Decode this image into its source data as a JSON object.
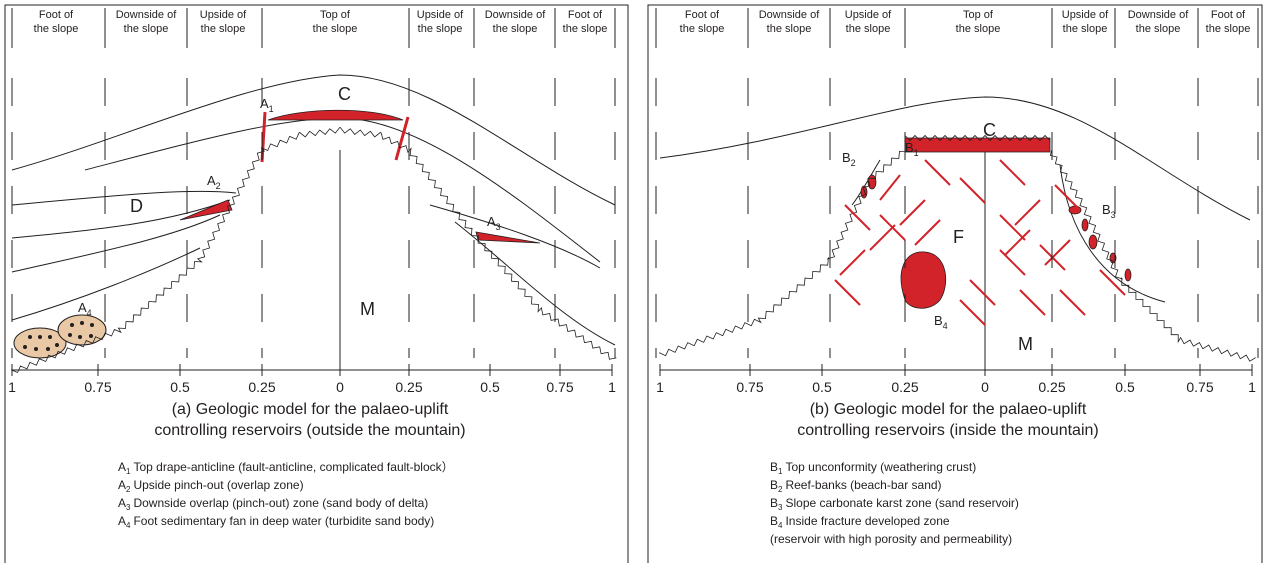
{
  "panels": [
    {
      "zones": [
        [
          "Foot of",
          "the slope"
        ],
        [
          "Downside of",
          "the slope"
        ],
        [
          "Upside of",
          "the slope"
        ],
        [
          "Top of",
          "the slope"
        ],
        [
          "Upside of",
          "the slope"
        ],
        [
          "Downside of",
          "the slope"
        ],
        [
          "Foot of",
          "the slope"
        ]
      ],
      "axis_labels": [
        "1",
        "0.75",
        "0.5",
        "0.25",
        "0",
        "0.25",
        "0.5",
        "0.75",
        "1"
      ],
      "labels": [
        {
          "letter": "A",
          "sub": "1"
        },
        {
          "letter": "C"
        },
        {
          "letter": "A",
          "sub": "2"
        },
        {
          "letter": "D"
        },
        {
          "letter": "A",
          "sub": "3"
        },
        {
          "letter": "A",
          "sub": "4"
        },
        {
          "letter": "M"
        }
      ],
      "caption": [
        "(a) Geologic model for the palaeo-uplift",
        "controlling reservoirs (outside the mountain)"
      ],
      "legend": [
        {
          "letter": "A",
          "sub": "1",
          "text": "Top drape-anticline (fault-anticline, complicated fault-block）"
        },
        {
          "letter": "A",
          "sub": "2",
          "text": "Upside pinch-out (overlap zone)"
        },
        {
          "letter": "A",
          "sub": "3",
          "text": "Downside overlap (pinch-out) zone (sand body of delta)"
        },
        {
          "letter": "A",
          "sub": "4",
          "text": "Foot sedimentary fan in deep water (turbidite sand body)"
        }
      ]
    },
    {
      "zones": [
        [
          "Foot of",
          "the slope"
        ],
        [
          "Downside of",
          "the slope"
        ],
        [
          "Upside of",
          "the slope"
        ],
        [
          "Top of",
          "the slope"
        ],
        [
          "Upside of",
          "the slope"
        ],
        [
          "Downside of",
          "the slope"
        ],
        [
          "Foot of",
          "the slope"
        ]
      ],
      "axis_labels": [
        "1",
        "0.75",
        "0.5",
        "0.25",
        "0",
        "0.25",
        "0.5",
        "0.75",
        "1"
      ],
      "labels": [
        {
          "letter": "B",
          "sub": "1"
        },
        {
          "letter": "C"
        },
        {
          "letter": "B",
          "sub": "2"
        },
        {
          "letter": "B",
          "sub": "3"
        },
        {
          "letter": "F"
        },
        {
          "letter": "B",
          "sub": "4"
        },
        {
          "letter": "M"
        }
      ],
      "caption": [
        "(b) Geologic model for the palaeo-uplift",
        "controlling reservoirs (inside the mountain)"
      ],
      "legend": [
        {
          "letter": "B",
          "sub": "1",
          "text": "Top unconformity (weathering crust)"
        },
        {
          "letter": "B",
          "sub": "2",
          "text": "Reef-banks (beach-bar sand)"
        },
        {
          "letter": "B",
          "sub": "3",
          "text": "Slope carbonate karst zone (sand reservoir)"
        },
        {
          "letter": "B",
          "sub": "4",
          "text": "Inside fracture developed zone"
        },
        {
          "text": "(reservoir with high porosity and permeability)"
        }
      ]
    }
  ]
}
